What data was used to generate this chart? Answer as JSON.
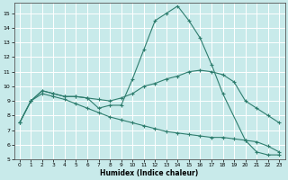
{
  "xlabel": "Humidex (Indice chaleur)",
  "bg_color": "#c8eaea",
  "grid_color": "#ffffff",
  "line_color": "#2e7d6e",
  "xlim": [
    -0.5,
    23.5
  ],
  "ylim": [
    5,
    15.7
  ],
  "yticks": [
    5,
    6,
    7,
    8,
    9,
    10,
    11,
    12,
    13,
    14,
    15
  ],
  "xticks": [
    0,
    1,
    2,
    3,
    4,
    5,
    6,
    7,
    8,
    9,
    10,
    11,
    12,
    13,
    14,
    15,
    16,
    17,
    18,
    19,
    20,
    21,
    22,
    23
  ],
  "curve1_x": [
    0,
    1,
    2,
    3,
    4,
    5,
    6,
    7,
    8,
    9,
    10,
    11,
    12,
    13,
    14,
    15,
    16,
    17,
    18,
    20,
    21,
    22,
    23
  ],
  "curve1_y": [
    7.5,
    9.0,
    9.7,
    9.5,
    9.3,
    9.3,
    9.2,
    8.5,
    8.7,
    8.7,
    10.5,
    12.5,
    14.5,
    15.0,
    15.5,
    14.5,
    13.3,
    11.5,
    9.5,
    6.3,
    5.5,
    5.3,
    5.3
  ],
  "curve2_x": [
    0,
    1,
    2,
    3,
    4,
    5,
    6,
    7,
    8,
    9,
    10,
    11,
    12,
    13,
    14,
    15,
    16,
    17,
    18,
    19,
    20,
    21,
    22,
    23
  ],
  "curve2_y": [
    7.5,
    9.0,
    9.7,
    9.5,
    9.3,
    9.3,
    9.2,
    9.1,
    9.0,
    9.2,
    9.5,
    10.0,
    10.2,
    10.5,
    10.7,
    11.0,
    11.1,
    11.0,
    10.8,
    10.3,
    9.0,
    8.5,
    8.0,
    7.5
  ],
  "curve3_x": [
    0,
    1,
    2,
    3,
    4,
    5,
    6,
    7,
    8,
    9,
    10,
    11,
    12,
    13,
    14,
    15,
    16,
    17,
    18,
    19,
    20,
    21,
    22,
    23
  ],
  "curve3_y": [
    7.5,
    9.0,
    9.5,
    9.3,
    9.1,
    8.8,
    8.5,
    8.2,
    7.9,
    7.7,
    7.5,
    7.3,
    7.1,
    6.9,
    6.8,
    6.7,
    6.6,
    6.5,
    6.5,
    6.4,
    6.3,
    6.2,
    5.9,
    5.5
  ]
}
